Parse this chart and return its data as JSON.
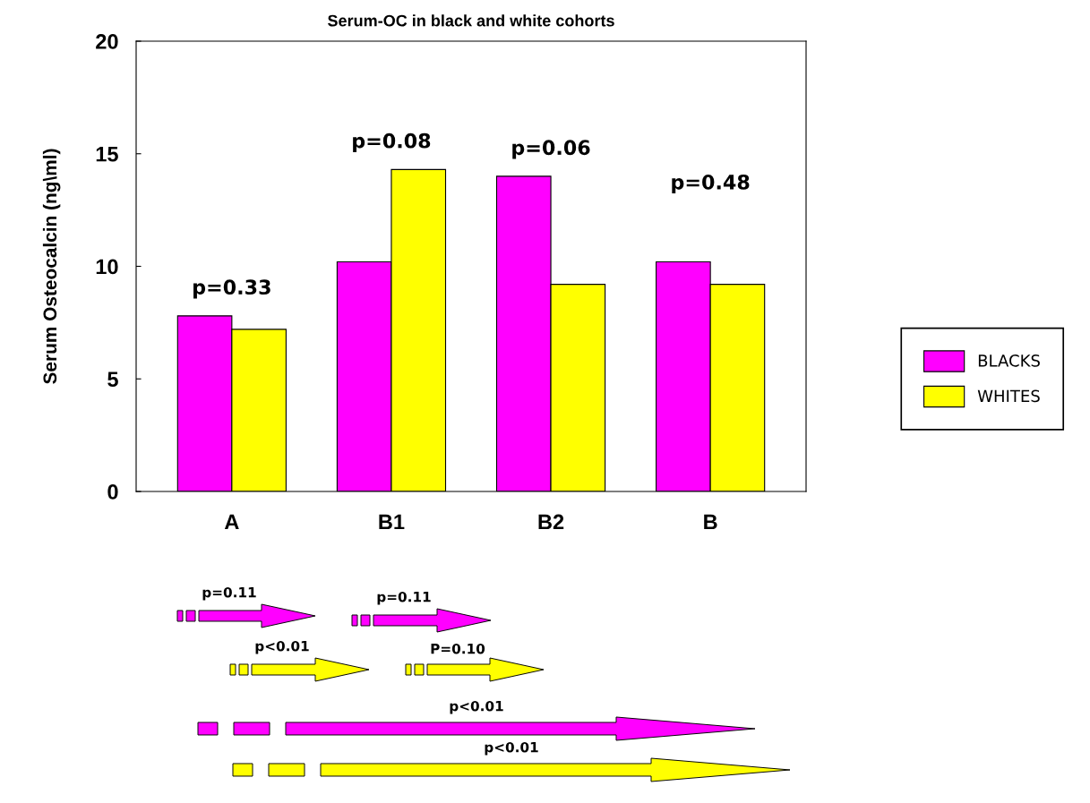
{
  "chart_data": {
    "type": "bar",
    "title": "Serum-OC in black and white cohorts",
    "ylabel": "Serum Osteocalcin (ng\\ml)",
    "categories": [
      "A",
      "B1",
      "B2",
      "B"
    ],
    "series": [
      {
        "name": "BLACKS",
        "color": "#ff00ff",
        "values": [
          7.8,
          10.2,
          14.0,
          10.2
        ]
      },
      {
        "name": "WHITES",
        "color": "#ffff00",
        "values": [
          7.2,
          14.3,
          9.2,
          9.2
        ]
      }
    ],
    "ylim": [
      0,
      20
    ],
    "yticks": [
      0,
      5,
      10,
      15,
      20
    ],
    "grid": false,
    "legend": "right",
    "annotations": [
      "p=0.33",
      "p=0.08",
      "p=0.06",
      "p=0.48",
      "p=0.11",
      "p=0.11",
      "p<0.01",
      "P=0.10",
      "p<0.01",
      "p<0.01"
    ]
  }
}
